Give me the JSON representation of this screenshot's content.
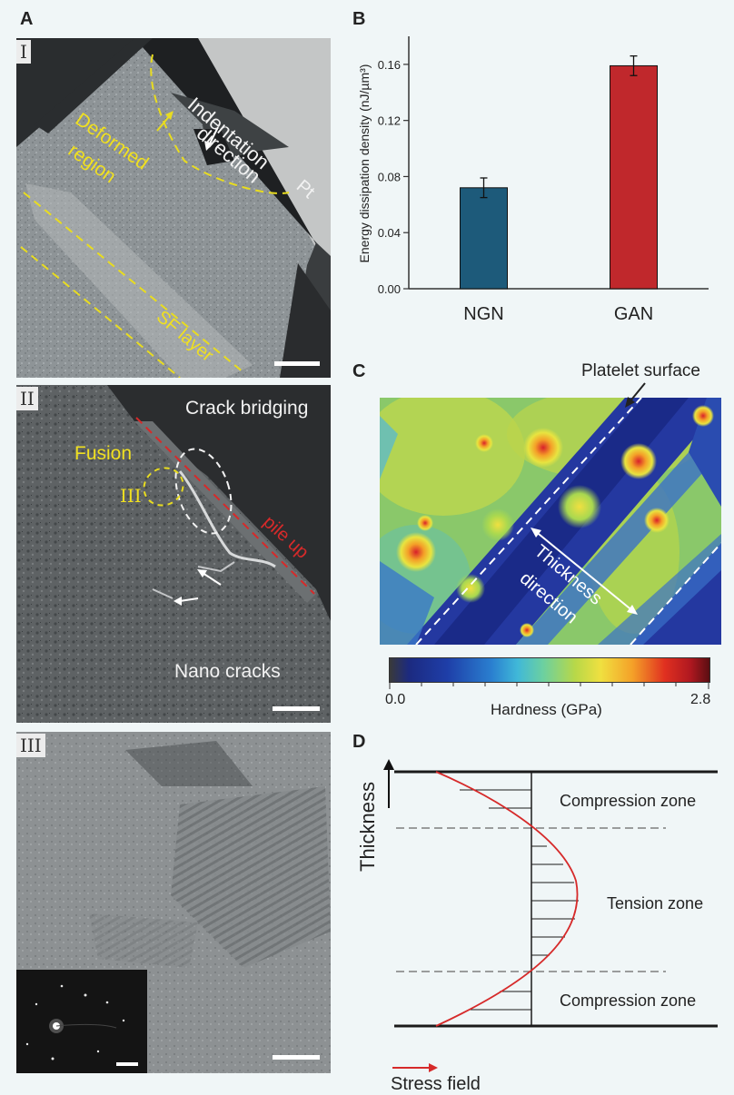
{
  "figure": {
    "panel_A": {
      "label": "A",
      "sub_I": {
        "roman": "I",
        "indentation_direction": [
          "Indentation",
          "direction"
        ],
        "deformed_region": [
          "Deformed",
          "region"
        ],
        "pt": "Pt",
        "sf_layer": "SF layer"
      },
      "sub_II": {
        "roman": "II",
        "crack_bridging": "Crack bridging",
        "fusion": "Fusion",
        "roman_III": "III",
        "pile_up": "pile up",
        "nano_cracks": "Nano cracks"
      },
      "sub_III": {
        "roman": "III"
      }
    },
    "panel_B": {
      "label": "B"
    },
    "panel_C": {
      "label": "C",
      "platelet_surface": "Platelet surface",
      "thickness_direction": [
        "Thickness",
        "direction"
      ],
      "colorbar_min": "0.0",
      "colorbar_max": "2.8",
      "colorbar_label": "Hardness (GPa)"
    },
    "panel_D": {
      "label": "D",
      "thickness": "Thickness",
      "compression_zone_top": "Compression zone",
      "tension_zone": "Tension zone",
      "compression_zone_bottom": "Compression zone",
      "stress_field": "Stress field",
      "curve_color": "#d62a2a"
    }
  },
  "chart_data": {
    "type": "bar",
    "categories": [
      "NGN",
      "GAN"
    ],
    "values": [
      0.072,
      0.159
    ],
    "errors": [
      0.007,
      0.007
    ],
    "colors": [
      "#1d5a7a",
      "#c0282c"
    ],
    "ylabel": "Energy dissipation density  (nJ/µm³)",
    "ylim": [
      0.0,
      0.18
    ],
    "yticks": [
      "0.00",
      "0.04",
      "0.08",
      "0.12",
      "0.16"
    ],
    "grid": false
  }
}
